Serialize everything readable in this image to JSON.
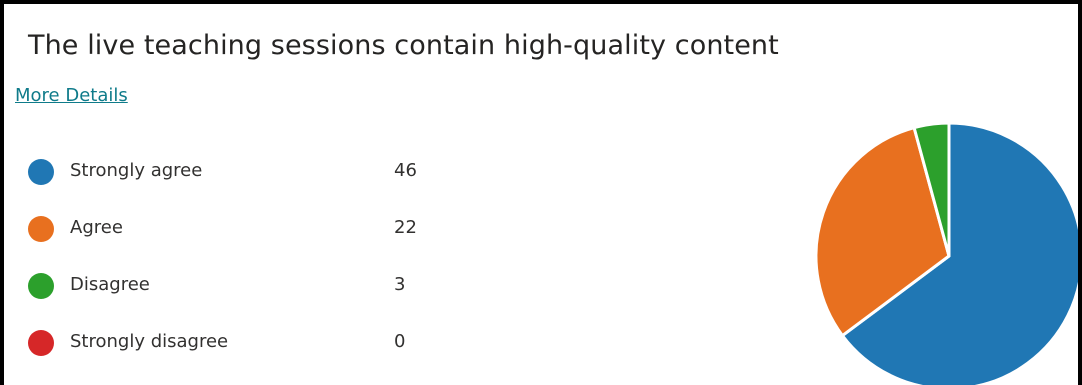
{
  "question": {
    "title": "The live teaching sessions contain high-quality content",
    "more_details_label": "More Details"
  },
  "chart_data": {
    "type": "pie",
    "categories": [
      "Strongly agree",
      "Agree",
      "Disagree",
      "Strongly disagree"
    ],
    "values": [
      46,
      22,
      3,
      0
    ],
    "colors": [
      "#2077b4",
      "#e8701f",
      "#2ca02c",
      "#d62728"
    ],
    "legend_position": "left"
  }
}
